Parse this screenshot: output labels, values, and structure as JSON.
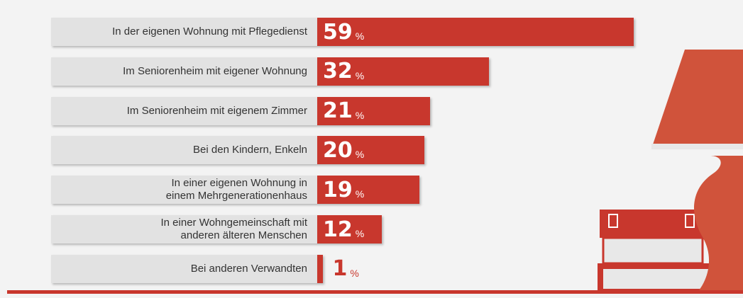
{
  "chart_data": {
    "type": "bar",
    "orientation": "horizontal",
    "categories": [
      "In der eigenen Wohnung mit Pflegedienst",
      "Im Seniorenheim mit eigener Wohnung",
      "Im Seniorenheim mit eigenem Zimmer",
      "Bei den Kindern, Enkeln",
      "In einer eigenen Wohnung in\neinem Mehrgenerationenhaus",
      "In einer Wohngemeinschaft mit\nanderen älteren Menschen",
      "Bei anderen Verwandten"
    ],
    "values": [
      59,
      32,
      21,
      20,
      19,
      12,
      1
    ],
    "unit": "%",
    "color": "#c8372d",
    "xlim": [
      0,
      100
    ]
  }
}
